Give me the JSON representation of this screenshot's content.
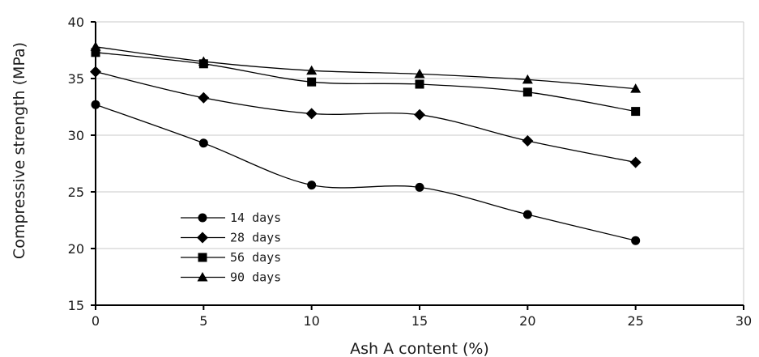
{
  "chart_data": {
    "type": "line",
    "xlabel": "Ash A content (%)",
    "ylabel": "Compressive strength (MPa)",
    "xlim": [
      0,
      30
    ],
    "ylim": [
      15,
      40
    ],
    "xticks": [
      0,
      5,
      10,
      15,
      20,
      25,
      30
    ],
    "yticks": [
      15,
      20,
      25,
      30,
      35,
      40
    ],
    "grid": "horizontal",
    "legend_position": "lower-left",
    "x": [
      0,
      5,
      10,
      15,
      20,
      25
    ],
    "series": [
      {
        "name": "14 days",
        "marker": "circle",
        "values": [
          32.7,
          29.3,
          25.6,
          25.4,
          23.0,
          20.7
        ]
      },
      {
        "name": "28 days",
        "marker": "diamond",
        "values": [
          35.6,
          33.3,
          31.9,
          31.8,
          29.5,
          27.6
        ]
      },
      {
        "name": "56 days",
        "marker": "square",
        "values": [
          37.3,
          36.3,
          34.7,
          34.5,
          33.8,
          32.1
        ]
      },
      {
        "name": "90 days",
        "marker": "triangle",
        "values": [
          37.8,
          36.5,
          35.7,
          35.4,
          34.9,
          34.1
        ]
      }
    ]
  }
}
